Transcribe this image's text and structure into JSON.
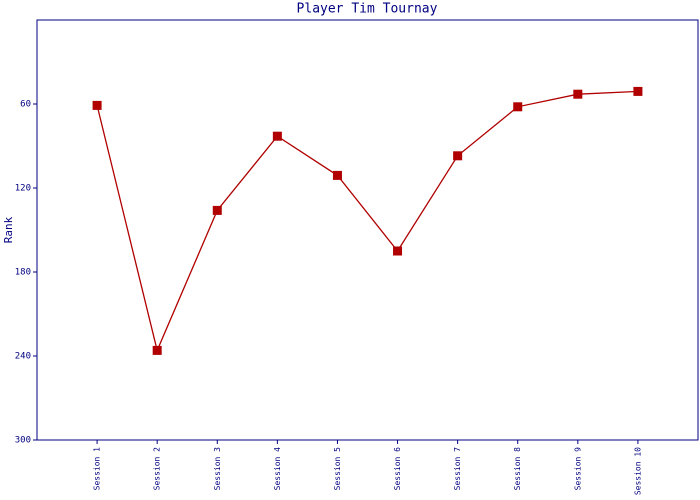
{
  "chart_data": {
    "type": "line",
    "title": "Player Tim Tournay",
    "y_label": "Rank",
    "categories": [
      "Session 1",
      "Session 2",
      "Session 3",
      "Session 4",
      "Session 5",
      "Session 6",
      "Session 7",
      "Session 8",
      "Session 9",
      "Session 10"
    ],
    "values": [
      61,
      236,
      136,
      83,
      111,
      165,
      97,
      62,
      53,
      51
    ],
    "color": "#b00000",
    "ylim": [
      300,
      0
    ],
    "yticks": [
      60,
      120,
      180,
      240,
      300
    ]
  }
}
